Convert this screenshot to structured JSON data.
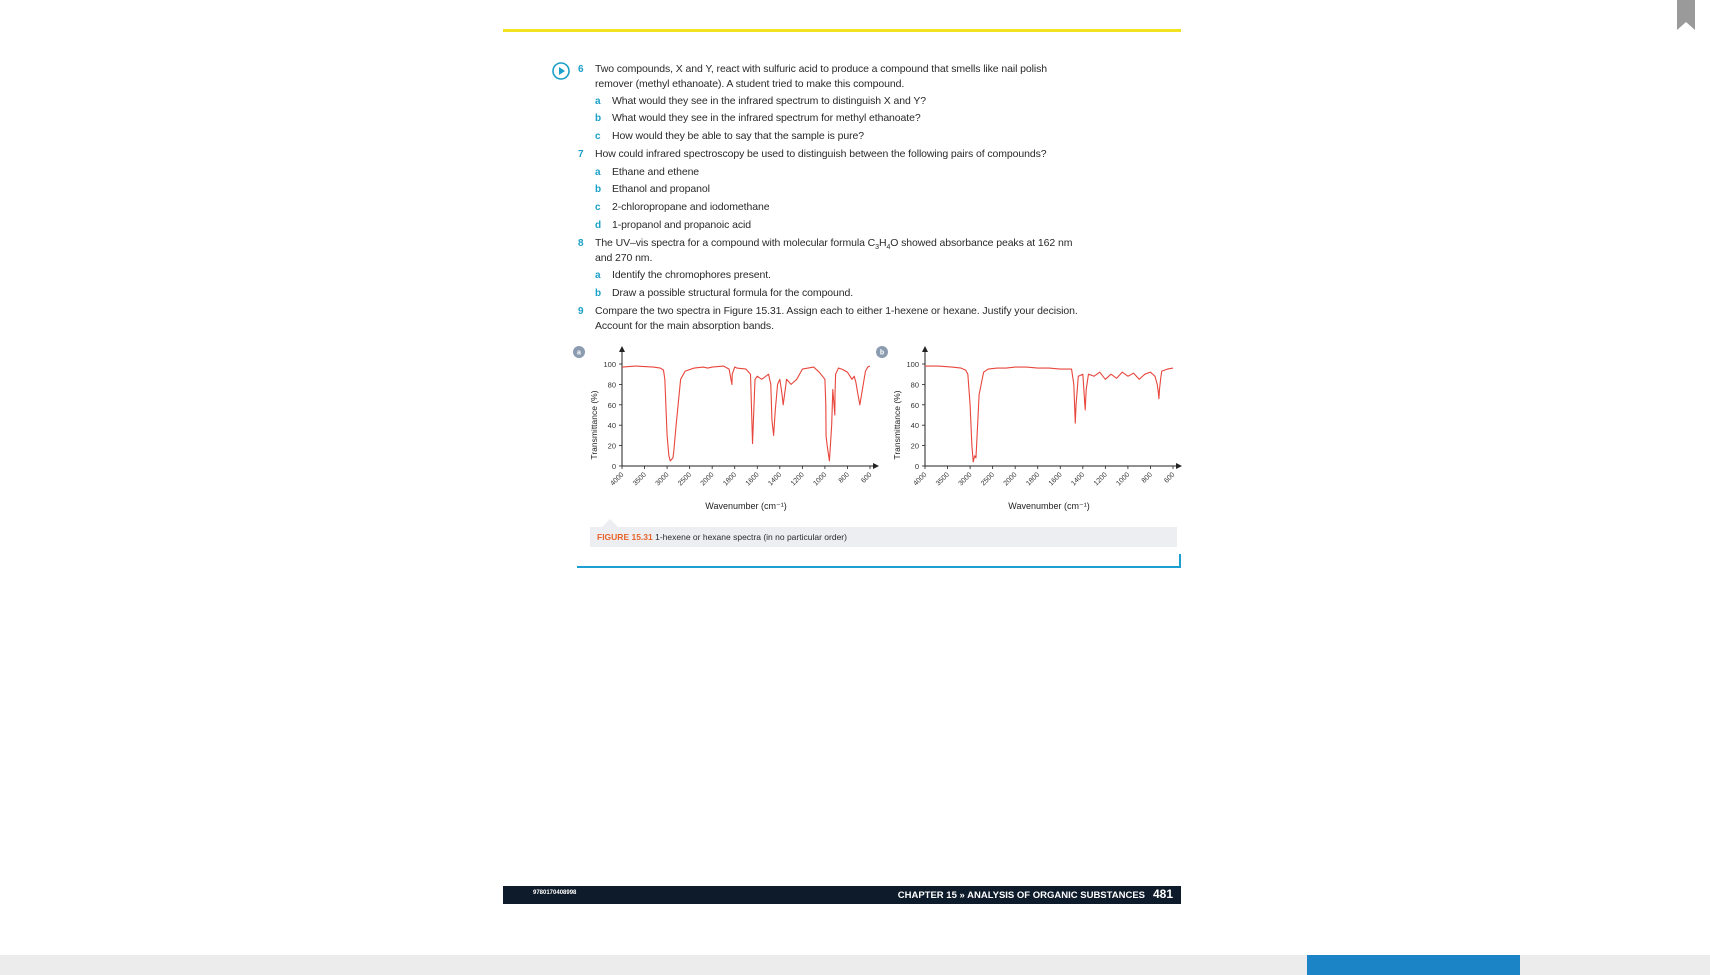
{
  "questions": {
    "q6": {
      "num": "6",
      "text1": "Two compounds, X and Y, react with sulfuric acid to produce a compound that smells like nail polish",
      "text2": "remover (methyl ethanoate). A student tried to make this compound.",
      "parts": [
        {
          "letter": "a",
          "text": "What would they see in the infrared spectrum to distinguish X and Y?"
        },
        {
          "letter": "b",
          "text": "What would they see in the infrared spectrum for methyl ethanoate?"
        },
        {
          "letter": "c",
          "text": "How would they be able to say that the sample is pure?"
        }
      ]
    },
    "q7": {
      "num": "7",
      "text": "How could infrared spectroscopy be used to distinguish between the following pairs of compounds?",
      "parts": [
        {
          "letter": "a",
          "text": "Ethane and ethene"
        },
        {
          "letter": "b",
          "text": "Ethanol and propanol"
        },
        {
          "letter": "c",
          "text": "2-chloropropane and iodomethane"
        },
        {
          "letter": "d",
          "text": "1-propanol and propanoic acid"
        }
      ]
    },
    "q8": {
      "num": "8",
      "text1_pre": "The UV–vis spectra for a compound with molecular formula C",
      "sub1": "3",
      "mid": "H",
      "sub2": "4",
      "text1_post": "O showed absorbance peaks at 162 nm",
      "text2": "and 270 nm.",
      "parts": [
        {
          "letter": "a",
          "text": "Identify the chromophores present."
        },
        {
          "letter": "b",
          "text": "Draw a possible structural formula for the compound."
        }
      ]
    },
    "q9": {
      "num": "9",
      "text1": "Compare the two spectra in Figure 15.31. Assign each to either 1-hexene or hexane. Justify your decision.",
      "text2": "Account for the main absorption bands."
    }
  },
  "chart_data": [
    {
      "type": "line",
      "panel_label": "a",
      "xlabel": "Wavenumber (cm⁻¹)",
      "ylabel": "Transmittance (%)",
      "x_ticks": [
        "4000",
        "3500",
        "3000",
        "2500",
        "2000",
        "1800",
        "1600",
        "1400",
        "1200",
        "1000",
        "800",
        "600"
      ],
      "y_ticks": [
        "0",
        "20",
        "40",
        "60",
        "80",
        "100"
      ],
      "ylim": [
        0,
        100
      ],
      "series": [
        {
          "color": "#e8463c",
          "x": [
            4000,
            3700,
            3300,
            3150,
            3080,
            3050,
            3000,
            2960,
            2930,
            2870,
            2850,
            2800,
            2700,
            2600,
            2400,
            2200,
            2100,
            2000,
            1900,
            1850,
            1825,
            1822,
            1800,
            1780,
            1700,
            1660,
            1642,
            1620,
            1600,
            1560,
            1500,
            1480,
            1470,
            1455,
            1440,
            1420,
            1400,
            1380,
            1370,
            1340,
            1300,
            1250,
            1200,
            1100,
            1050,
            1000,
            992,
            990,
            980,
            960,
            940,
            930,
            912,
            910,
            905,
            880,
            850,
            800,
            760,
            740,
            725,
            710,
            690,
            660,
            640,
            620,
            600
          ],
          "y": [
            97,
            98,
            97,
            96,
            94,
            85,
            30,
            10,
            5,
            8,
            15,
            40,
            85,
            93,
            96,
            97,
            96,
            97,
            98,
            95,
            80,
            90,
            97,
            96,
            95,
            90,
            22,
            85,
            88,
            85,
            90,
            80,
            45,
            30,
            55,
            80,
            85,
            70,
            60,
            85,
            80,
            85,
            95,
            97,
            92,
            85,
            60,
            30,
            20,
            5,
            40,
            75,
            50,
            72,
            90,
            96,
            95,
            92,
            85,
            88,
            82,
            72,
            60,
            80,
            93,
            97,
            98
          ]
        }
      ]
    },
    {
      "type": "line",
      "panel_label": "b",
      "xlabel": "Wavenumber (cm⁻¹)",
      "ylabel": "Transmittance (%)",
      "x_ticks": [
        "4000",
        "3500",
        "3000",
        "2500",
        "2000",
        "1800",
        "1600",
        "1400",
        "1200",
        "1000",
        "800",
        "600"
      ],
      "y_ticks": [
        "0",
        "20",
        "40",
        "60",
        "80",
        "100"
      ],
      "ylim": [
        0,
        100
      ],
      "series": [
        {
          "color": "#e8463c",
          "x": [
            4000,
            3700,
            3400,
            3200,
            3100,
            3050,
            3000,
            2960,
            2930,
            2900,
            2870,
            2850,
            2800,
            2700,
            2600,
            2400,
            2200,
            2000,
            1900,
            1800,
            1700,
            1600,
            1500,
            1480,
            1467,
            1460,
            1440,
            1400,
            1379,
            1370,
            1350,
            1300,
            1250,
            1200,
            1150,
            1100,
            1050,
            1000,
            950,
            900,
            850,
            800,
            760,
            740,
            730,
            725,
            720,
            710,
            700,
            650,
            600
          ],
          "y": [
            98,
            98,
            97,
            96,
            94,
            90,
            60,
            20,
            4,
            10,
            8,
            25,
            70,
            92,
            95,
            96,
            96,
            97,
            97,
            96,
            96,
            95,
            95,
            80,
            42,
            60,
            88,
            90,
            55,
            75,
            90,
            88,
            92,
            85,
            90,
            86,
            92,
            88,
            91,
            85,
            90,
            92,
            88,
            80,
            72,
            66,
            75,
            85,
            93,
            95,
            96
          ]
        }
      ]
    }
  ],
  "caption": {
    "figure": "FIGURE 15.31",
    "text": "1-hexene or hexane spectra (in no particular order)"
  },
  "footer": {
    "isbn": "9780170408998",
    "chapter_prefix": "CHAPTER 15",
    "chapter_sep": "»",
    "chapter_title": "ANALYSIS OF ORGANIC SUBSTANCES",
    "page_number": "481"
  },
  "colors": {
    "accent": "#1aa0c8",
    "highlight_line": "#f2e21f",
    "spectrum": "#e8463c",
    "footer_bg": "#0d1b2a",
    "figure_label": "#e8642c"
  }
}
